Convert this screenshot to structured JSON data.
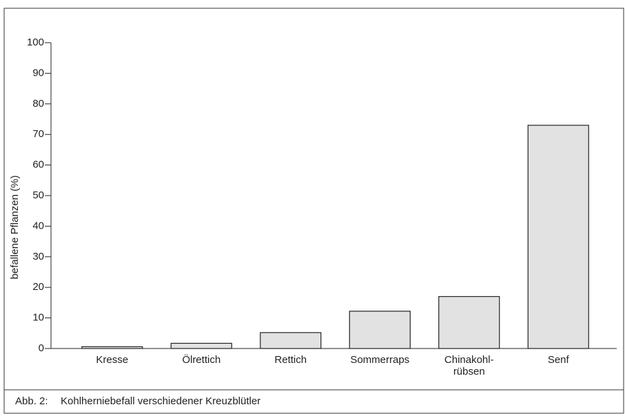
{
  "chart_data": {
    "type": "bar",
    "ylabel": "befallene Pflanzen (%)",
    "caption_label": "Abb. 2:",
    "caption": "Kohlherniebefall verschiedener Kreuzblütler",
    "categories": [
      "Kresse",
      "Ölrettich",
      "Rettich",
      "Sommerraps",
      "Chinakohl-\nrübsen",
      "Senf"
    ],
    "values": [
      0.6,
      1.7,
      5.2,
      12.2,
      17,
      73
    ],
    "color": "#e2e2e2",
    "ylim": [
      0,
      100
    ],
    "yticks": [
      0,
      10,
      20,
      30,
      40,
      50,
      60,
      70,
      80,
      90,
      100
    ],
    "grid": false
  }
}
